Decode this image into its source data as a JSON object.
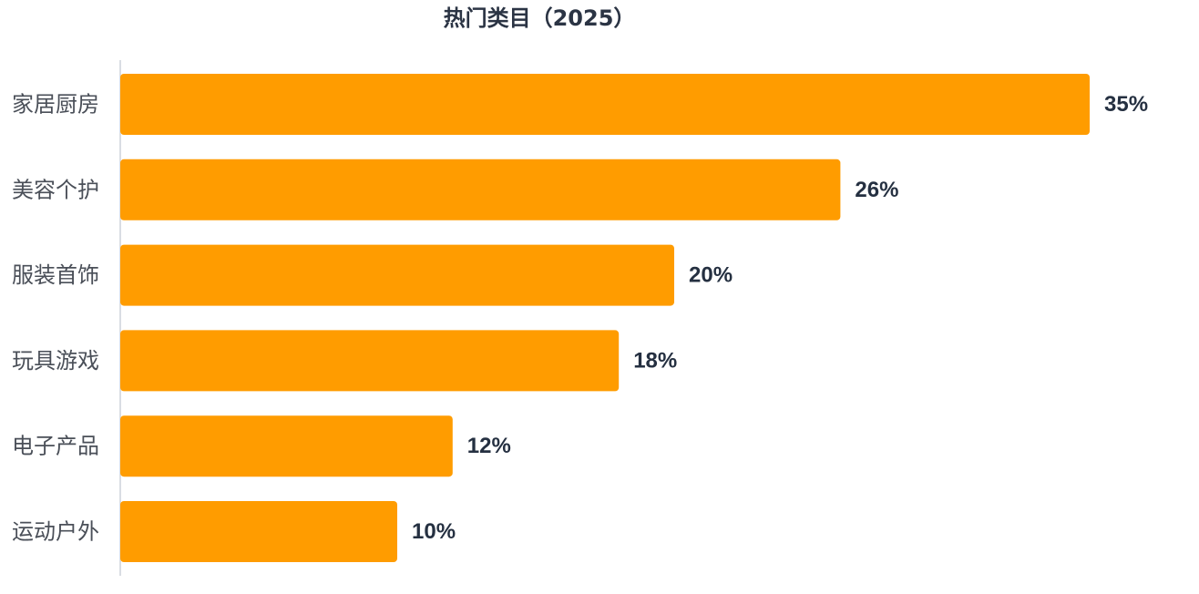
{
  "chart_data": {
    "type": "bar",
    "orientation": "horizontal",
    "title": "热门类目（2025）",
    "categories": [
      "家居厨房",
      "美容个护",
      "服装首饰",
      "玩具游戏",
      "电子产品",
      "运动户外"
    ],
    "values": [
      35,
      26,
      20,
      18,
      12,
      10
    ],
    "value_labels": [
      "35%",
      "26%",
      "20%",
      "18%",
      "12%",
      "10%"
    ],
    "unit": "%",
    "xlim": [
      0,
      35
    ],
    "grid": false,
    "legend": "none",
    "bar_color": "#ff9c00",
    "axis_color": "#d9dde3"
  }
}
